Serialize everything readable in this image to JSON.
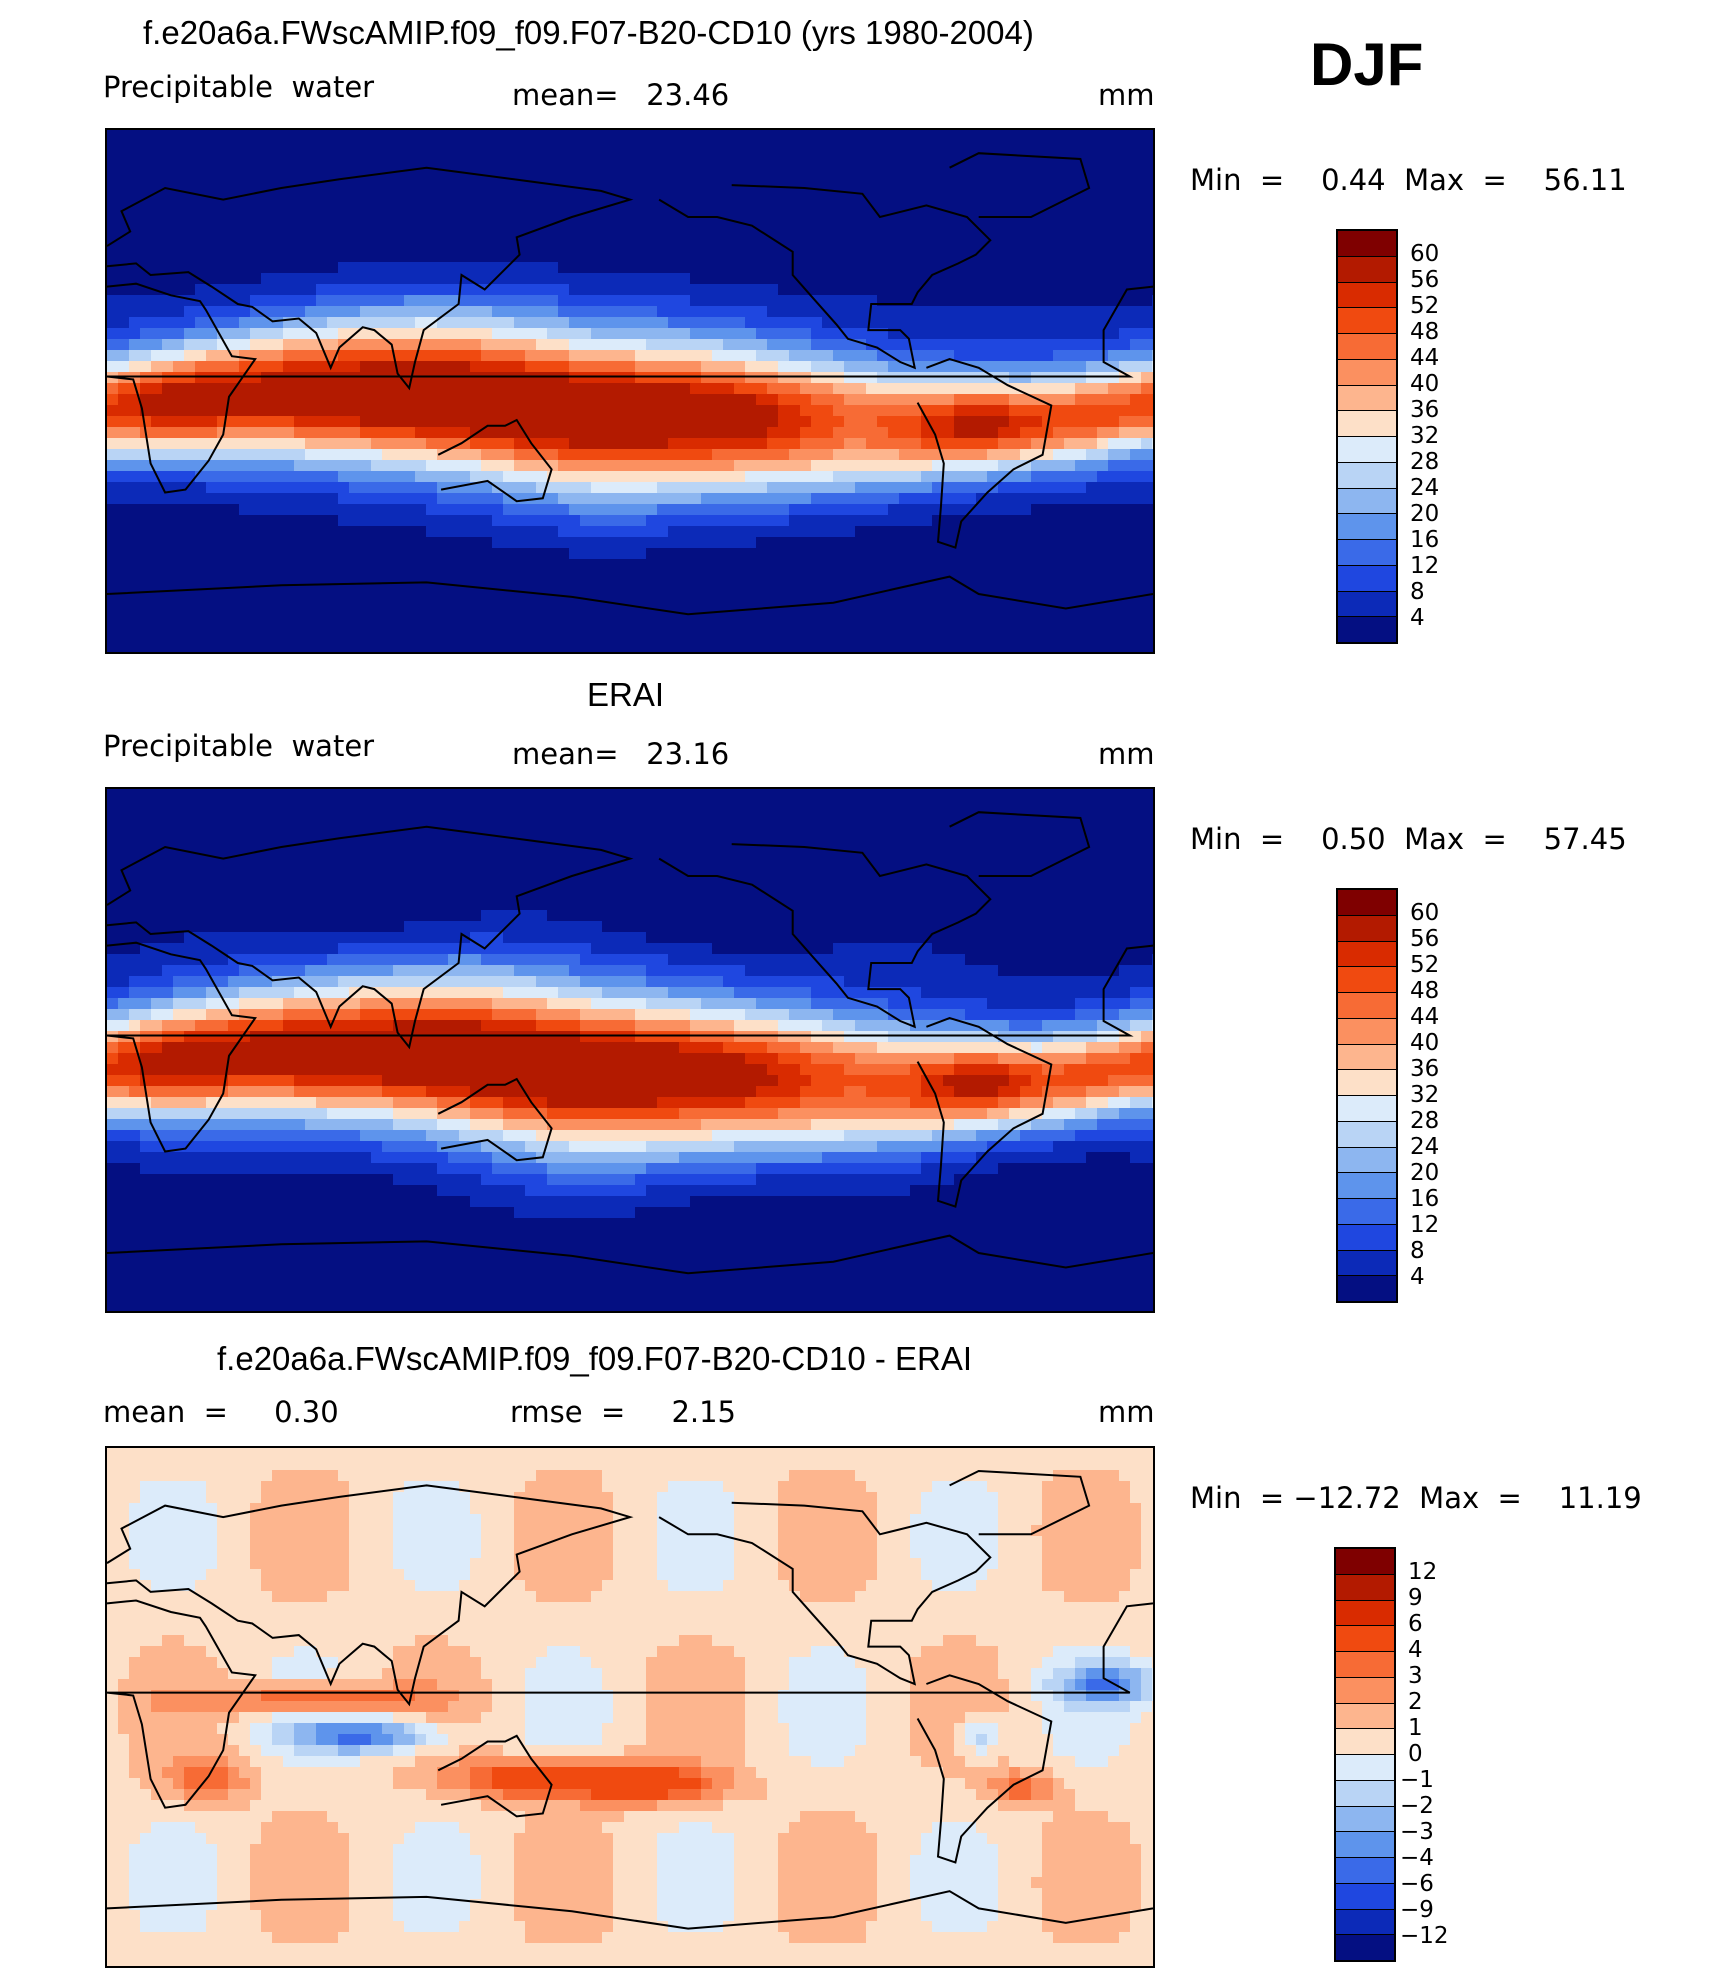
{
  "season": "DJF",
  "panels": [
    {
      "title": "f.e20a6a.FWscAMIP.f09_f09.F07-B20-CD10 (yrs 1980-2004)",
      "left_label": "Precipitable  water",
      "mid_label": "mean=   23.46",
      "units": "mm",
      "minmax": "Min  =    0.44  Max  =    56.11",
      "colorbar": {
        "labels": [
          "60",
          "56",
          "52",
          "48",
          "44",
          "40",
          "36",
          "32",
          "28",
          "24",
          "20",
          "16",
          "12",
          "8",
          "4"
        ],
        "colors": [
          "#7f0000",
          "#b31a00",
          "#d92b00",
          "#f04a10",
          "#f76b35",
          "#fb9060",
          "#fdb58e",
          "#fde0c8",
          "#dcebfa",
          "#b9d4f5",
          "#8db6f0",
          "#5e94ec",
          "#3a6ae8",
          "#1f47e0",
          "#0c2ab8",
          "#040f82"
        ]
      },
      "map_variant": "model"
    },
    {
      "title": "ERAI",
      "left_label": "Precipitable  water",
      "mid_label": "mean=   23.16",
      "units": "mm",
      "minmax": "Min  =    0.50  Max  =    57.45",
      "colorbar": {
        "labels": [
          "60",
          "56",
          "52",
          "48",
          "44",
          "40",
          "36",
          "32",
          "28",
          "24",
          "20",
          "16",
          "12",
          "8",
          "4"
        ],
        "colors": [
          "#7f0000",
          "#b31a00",
          "#d92b00",
          "#f04a10",
          "#f76b35",
          "#fb9060",
          "#fdb58e",
          "#fde0c8",
          "#dcebfa",
          "#b9d4f5",
          "#8db6f0",
          "#5e94ec",
          "#3a6ae8",
          "#1f47e0",
          "#0c2ab8",
          "#040f82"
        ]
      },
      "map_variant": "obs"
    },
    {
      "title": "f.e20a6a.FWscAMIP.f09_f09.F07-B20-CD10 - ERAI",
      "left_label": "mean  =     0.30",
      "mid_label": "rmse  =     2.15",
      "units": "mm",
      "minmax": "Min  = −12.72  Max  =    11.19",
      "colorbar": {
        "labels": [
          "12",
          "9",
          "6",
          "4",
          "3",
          "2",
          "1",
          "0",
          "−1",
          "−2",
          "−3",
          "−4",
          "−6",
          "−9",
          "−12"
        ],
        "colors": [
          "#7f0000",
          "#b31a00",
          "#d92b00",
          "#f04a10",
          "#f76b35",
          "#fb9060",
          "#fdb58e",
          "#fde0c8",
          "#dcebfa",
          "#b9d4f5",
          "#8db6f0",
          "#5e94ec",
          "#3a6ae8",
          "#1f47e0",
          "#0c2ab8",
          "#040f82"
        ]
      },
      "map_variant": "diff"
    }
  ]
}
